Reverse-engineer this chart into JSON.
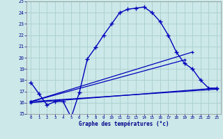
{
  "xlabel": "Graphe des températures (°c)",
  "hours": [
    0,
    1,
    2,
    3,
    4,
    5,
    6,
    7,
    8,
    9,
    10,
    11,
    12,
    13,
    14,
    15,
    16,
    17,
    18,
    19,
    20,
    21,
    22,
    23
  ],
  "curve_main": [
    17.8,
    16.8,
    15.8,
    16.1,
    16.1,
    14.7,
    16.9,
    19.9,
    20.9,
    22.0,
    23.0,
    24.0,
    24.3,
    24.4,
    24.5,
    24.0,
    23.2,
    22.0,
    20.5,
    19.5,
    19.0,
    18.0,
    17.3,
    17.3
  ],
  "trend1_x": [
    0,
    23
  ],
  "trend1_y": [
    16.0,
    17.3
  ],
  "trend2_x": [
    0,
    19
  ],
  "trend2_y": [
    16.1,
    19.8
  ],
  "trend3_x": [
    0,
    20
  ],
  "trend3_y": [
    16.1,
    20.5
  ],
  "trend4_x": [
    0,
    23
  ],
  "trend4_y": [
    16.1,
    17.2
  ],
  "ylim": [
    15,
    25
  ],
  "xlim": [
    -0.5,
    23.5
  ],
  "bg_color": "#cce8e8",
  "grid_color": "#aacece",
  "line_color": "#0000bb",
  "tick_color": "#00008b",
  "label_color": "#00008b"
}
